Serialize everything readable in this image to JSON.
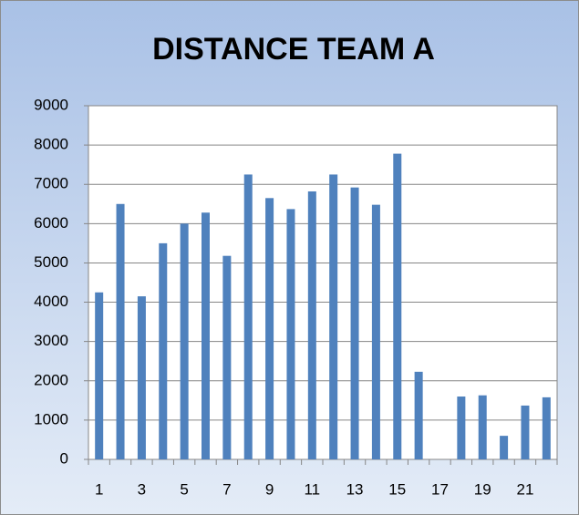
{
  "chart_data": {
    "type": "bar",
    "title": "DISTANCE TEAM A",
    "categories": [
      "1",
      null,
      "3",
      null,
      "5",
      null,
      "7",
      null,
      "9",
      null,
      "11",
      null,
      "13",
      null,
      "15",
      null,
      "17",
      null,
      "19",
      null,
      "21",
      null
    ],
    "values": [
      4250,
      6500,
      4150,
      5500,
      6000,
      6280,
      5180,
      7250,
      6650,
      6370,
      6820,
      7250,
      6920,
      6480,
      7780,
      2230,
      0,
      1600,
      1630,
      600,
      1370,
      1580
    ],
    "color": "#4f81bd",
    "ylim": [
      0,
      9000
    ],
    "yticks": [
      0,
      1000,
      2000,
      3000,
      4000,
      5000,
      6000,
      7000,
      8000,
      9000
    ],
    "grid": true
  }
}
